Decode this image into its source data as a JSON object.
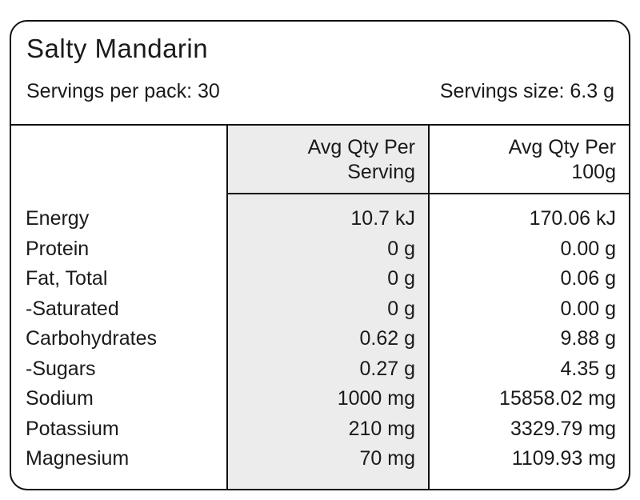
{
  "panel": {
    "title": "Salty Mandarin",
    "servings_per_pack": {
      "label": "Servings per pack:",
      "value": "30"
    },
    "serving_size": {
      "label": "Servings size:",
      "value": "6.3 g"
    }
  },
  "table": {
    "headers": {
      "per_serving": {
        "line1": "Avg Qty Per",
        "line2": "Serving"
      },
      "per_100g": {
        "line1": "Avg Qty Per",
        "line2": "100g"
      }
    },
    "rows": [
      {
        "nutrient": "Energy",
        "per_serving": "10.7 kJ",
        "per_100g": "170.06 kJ"
      },
      {
        "nutrient": "Protein",
        "per_serving": "0 g",
        "per_100g": "0.00 g"
      },
      {
        "nutrient": "Fat, Total",
        "per_serving": "0 g",
        "per_100g": "0.06 g"
      },
      {
        "nutrient": "-Saturated",
        "per_serving": "0 g",
        "per_100g": "0.00 g"
      },
      {
        "nutrient": "Carbohydrates",
        "per_serving": "0.62 g",
        "per_100g": "9.88 g"
      },
      {
        "nutrient": "-Sugars",
        "per_serving": "0.27 g",
        "per_100g": "4.35 g"
      },
      {
        "nutrient": "Sodium",
        "per_serving": "1000 mg",
        "per_100g": "15858.02 mg"
      },
      {
        "nutrient": "Potassium",
        "per_serving": "210 mg",
        "per_100g": "3329.79 mg"
      },
      {
        "nutrient": "Magnesium",
        "per_serving": "70 mg",
        "per_100g": "1109.93 mg"
      }
    ]
  },
  "colors": {
    "border": "#111111",
    "header_column_fill": "#ececec",
    "text": "#1a1a1a",
    "background": "#ffffff"
  }
}
